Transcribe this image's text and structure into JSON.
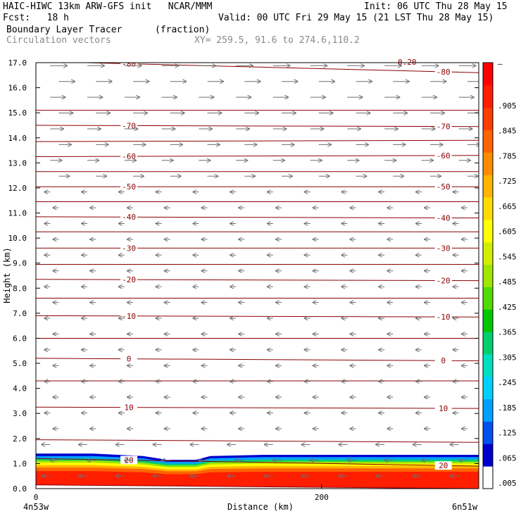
{
  "header": {
    "title": "HAIC-HIWC 13km ARW-GFS init   NCAR/MMM",
    "init": "Init: 06 UTC Thu 28 May 15",
    "fcst": "Fcst:   18 h",
    "valid": "Valid: 00 UTC Fri 29 May 15 (21 LST Thu 28 May 15)",
    "field": "Boundary Layer Tracer",
    "field_units": "(fraction)",
    "vectors": "Circulation vectors",
    "xy": "XY= 259.5, 91.6 to 274.6,110.2"
  },
  "chart_data": {
    "type": "heatmap",
    "xlabel": "Distance (km)",
    "ylabel": "Height (km)",
    "xlim": [
      0,
      310
    ],
    "ylim": [
      0,
      17
    ],
    "x_tick_labels": [
      {
        "value": 0,
        "label": "0"
      },
      {
        "value": 200,
        "label": "200"
      }
    ],
    "endpoint_labels": {
      "left": "4n53w",
      "right": "6n51w"
    },
    "y_ticks": [
      0.0,
      1.0,
      2.0,
      3.0,
      4.0,
      5.0,
      6.0,
      7.0,
      8.0,
      9.0,
      10.0,
      11.0,
      12.0,
      13.0,
      14.0,
      15.0,
      16.0,
      17.0
    ],
    "y_tick_labels": [
      "0.0",
      "1.0",
      "2.0",
      "3.0",
      "4.0",
      "5.0",
      "6.0",
      "7.0",
      "8.0",
      "9.0",
      "10.0",
      "11.0",
      "12.0",
      "13.0",
      "14.0",
      "15.0",
      "16.0",
      "17.0"
    ],
    "colorbar": {
      "labels": [
        ".905",
        ".845",
        ".785",
        ".725",
        ".665",
        ".605",
        ".545",
        ".485",
        ".425",
        ".365",
        ".305",
        ".245",
        ".185",
        ".125",
        ".065",
        ".005"
      ],
      "top_label": "–",
      "colors": [
        "#ffffff",
        "#0000cd",
        "#0050f0",
        "#00a0ff",
        "#00d0ff",
        "#00e0c0",
        "#00d070",
        "#00c800",
        "#50dc00",
        "#a0e600",
        "#d2ee00",
        "#ffff00",
        "#ffdc00",
        "#ffb400",
        "#ff8c00",
        "#ff6400",
        "#ff3c00",
        "#ff1e00",
        "#ff0000"
      ]
    },
    "boundary_layer_top_km": [
      1.4,
      1.4,
      1.3,
      1.15,
      1.15,
      1.3,
      1.35,
      1.35,
      1.35,
      1.35
    ],
    "boundary_layer_x_km": [
      0,
      40,
      75,
      92,
      112,
      122,
      160,
      220,
      270,
      310
    ],
    "temperature_contours": [
      {
        "label": "-80",
        "heights": [
          17.05,
          16.6
        ]
      },
      {
        "label": "",
        "heights": [
          15.1,
          15.1
        ]
      },
      {
        "label": "-70",
        "heights": [
          14.5,
          14.45
        ]
      },
      {
        "label": "",
        "heights": [
          13.85,
          13.9
        ]
      },
      {
        "label": "-60",
        "heights": [
          13.25,
          13.3
        ]
      },
      {
        "label": "",
        "heights": [
          12.65,
          12.65
        ]
      },
      {
        "label": "-50",
        "heights": [
          12.05,
          12.05
        ]
      },
      {
        "label": "",
        "heights": [
          11.45,
          11.45
        ]
      },
      {
        "label": "-40",
        "heights": [
          10.85,
          10.8
        ]
      },
      {
        "label": "",
        "heights": [
          10.25,
          10.25
        ]
      },
      {
        "label": "-30",
        "heights": [
          9.6,
          9.6
        ]
      },
      {
        "label": "",
        "heights": [
          8.95,
          8.95
        ]
      },
      {
        "label": "-20",
        "heights": [
          8.35,
          8.3
        ]
      },
      {
        "label": "",
        "heights": [
          7.6,
          7.6
        ]
      },
      {
        "label": "-10",
        "heights": [
          6.9,
          6.85
        ]
      },
      {
        "label": "",
        "heights": [
          6.0,
          6.0
        ]
      },
      {
        "label": "0",
        "heights": [
          5.2,
          5.1
        ]
      },
      {
        "label": "",
        "heights": [
          4.3,
          4.3
        ]
      },
      {
        "label": "10",
        "heights": [
          3.25,
          3.2
        ]
      },
      {
        "label": "",
        "heights": [
          1.95,
          1.85
        ]
      },
      {
        "label": "20",
        "heights": [
          1.2,
          0.9
        ]
      },
      {
        "label": "",
        "heights": [
          0.15,
          0.0
        ]
      }
    ],
    "extra_label": "0.20",
    "vectors": "grey circulation arrows: westerly aloft above 12 km, easterly below 12 km"
  }
}
